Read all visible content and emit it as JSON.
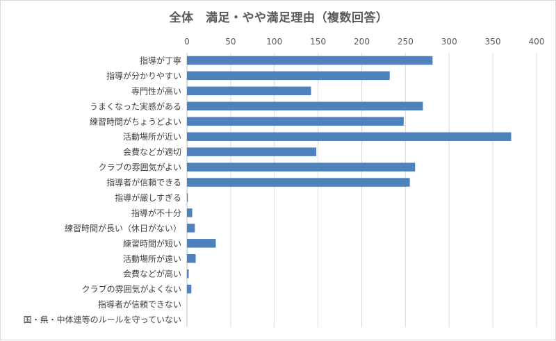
{
  "chart_data": {
    "type": "bar",
    "orientation": "horizontal",
    "title": "全体　満足・やや満足理由（複数回答）",
    "xlabel": "",
    "ylabel": "",
    "xlim": [
      0,
      400
    ],
    "xticks": [
      0,
      50,
      100,
      150,
      200,
      250,
      300,
      350,
      400
    ],
    "x_axis_position": "top",
    "grid": true,
    "legend": "none",
    "bar_color": "#4f81bd",
    "categories": [
      "指導が丁寧",
      "指導が分かりやすい",
      "専門性が高い",
      "うまくなった実感がある",
      "練習時間がちょうどよい",
      "活動場所が近い",
      "会費などが適切",
      "クラブの雰囲気がよい",
      "指導者が信頼できる",
      "指導が厳しすぎる",
      "指導が不十分",
      "練習時間が長い（休日がない）",
      "練習時間が短い",
      "活動場所が遠い",
      "会費などが高い",
      "クラブの雰囲気がよくない",
      "指導者が信頼できない",
      "国・県・中体連等のルールを守っていない"
    ],
    "values": [
      281,
      232,
      142,
      270,
      248,
      371,
      148,
      261,
      255,
      1,
      6,
      9,
      33,
      10,
      2,
      5,
      0,
      0
    ]
  }
}
